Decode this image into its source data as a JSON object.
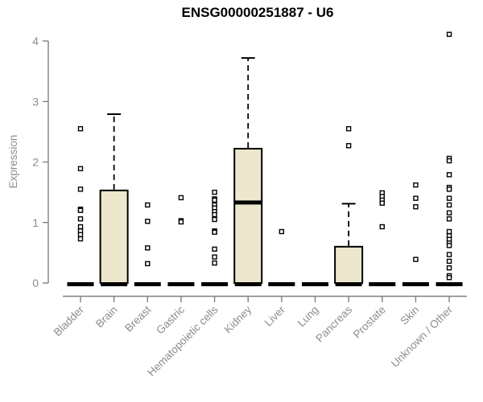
{
  "title": "ENSG00000251887 - U6",
  "chart_data": {
    "type": "boxplot",
    "title": "ENSG00000251887 - U6",
    "xlabel": "",
    "ylabel": "Expression",
    "ylim": [
      0,
      4
    ],
    "yticks": [
      0,
      1,
      2,
      3,
      4
    ],
    "grid": false,
    "legend": null,
    "colors": {
      "background": "#ffffff",
      "box_fill": "#ece7cd",
      "box_stroke": "#000000",
      "median": "#000000",
      "outlier_fill": "#ffffff",
      "outlier_stroke": "#000000",
      "axis": "#808080",
      "tick_label": "#8c8c8c",
      "title": "#000000"
    },
    "categories": [
      "Bladder",
      "Brain",
      "Breast",
      "Gastric",
      "Hematopoietic cells",
      "Kidney",
      "Liver",
      "Lung",
      "Pancreas",
      "Prostate",
      "Skin",
      "Unknown / Other"
    ],
    "boxes": [
      {
        "category": "Bladder",
        "q1": 0,
        "median": 0,
        "q3": 0,
        "whisker_low": 0,
        "whisker_high": 0,
        "outliers": [
          2.55,
          1.89,
          1.55,
          1.22,
          1.2,
          1.06,
          0.93,
          0.86,
          0.8,
          0.73
        ]
      },
      {
        "category": "Brain",
        "q1": 0,
        "median": 0,
        "q3": 1.53,
        "whisker_low": 0,
        "whisker_high": 2.79,
        "outliers": []
      },
      {
        "category": "Breast",
        "q1": 0,
        "median": 0,
        "q3": 0,
        "whisker_low": 0,
        "whisker_high": 0,
        "outliers": [
          1.29,
          1.02,
          0.58,
          0.32
        ]
      },
      {
        "category": "Gastric",
        "q1": 0,
        "median": 0,
        "q3": 0,
        "whisker_low": 0,
        "whisker_high": 0,
        "outliers": [
          1.41,
          1.03,
          1.01
        ]
      },
      {
        "category": "Hematopoietic cells",
        "q1": 0,
        "median": 0,
        "q3": 0,
        "whisker_low": 0,
        "whisker_high": 0,
        "outliers": [
          1.5,
          1.39,
          1.37,
          1.29,
          1.24,
          1.18,
          1.13,
          1.05,
          0.86,
          0.84,
          0.56,
          0.43,
          0.33
        ]
      },
      {
        "category": "Kidney",
        "q1": 0,
        "median": 1.33,
        "q3": 2.22,
        "whisker_low": 0,
        "whisker_high": 3.72,
        "outliers": []
      },
      {
        "category": "Liver",
        "q1": 0,
        "median": 0,
        "q3": 0,
        "whisker_low": 0,
        "whisker_high": 0,
        "outliers": [
          0.85
        ]
      },
      {
        "category": "Lung",
        "q1": 0,
        "median": 0,
        "q3": 0,
        "whisker_low": 0,
        "whisker_high": 0,
        "outliers": []
      },
      {
        "category": "Pancreas",
        "q1": 0,
        "median": 0,
        "q3": 0.6,
        "whisker_low": 0,
        "whisker_high": 1.31,
        "outliers": [
          2.55,
          2.27
        ]
      },
      {
        "category": "Prostate",
        "q1": 0,
        "median": 0,
        "q3": 0,
        "whisker_low": 0,
        "whisker_high": 0,
        "outliers": [
          1.49,
          1.43,
          1.37,
          1.32,
          0.93
        ]
      },
      {
        "category": "Skin",
        "q1": 0,
        "median": 0,
        "q3": 0,
        "whisker_low": 0,
        "whisker_high": 0,
        "outliers": [
          1.62,
          1.4,
          1.26,
          0.39
        ]
      },
      {
        "category": "Unknown / Other",
        "q1": 0,
        "median": 0,
        "q3": 0,
        "whisker_low": 0,
        "whisker_high": 0,
        "outliers": [
          4.11,
          2.06,
          2.02,
          1.79,
          1.58,
          1.55,
          1.4,
          1.29,
          1.16,
          1.06,
          0.85,
          0.78,
          0.72,
          0.66,
          0.62,
          0.47,
          0.36,
          0.25,
          0.12,
          0.09
        ]
      }
    ]
  }
}
